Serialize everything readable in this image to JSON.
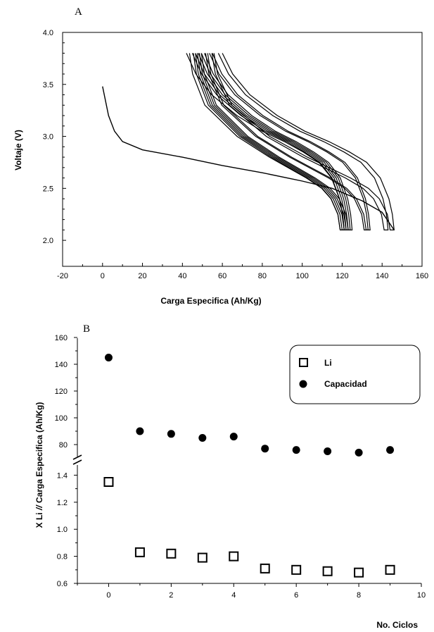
{
  "chart_data": [
    {
      "panel_label": "A",
      "type": "line",
      "xlabel": "Carga Especifica (Ah/Kg)",
      "ylabel": "Voltaje (V)",
      "xlim": [
        -20,
        160
      ],
      "ylim": [
        1.75,
        4.0
      ],
      "x_ticks": [
        "-20",
        "0",
        "20",
        "40",
        "60",
        "80",
        "100",
        "120",
        "140",
        "160"
      ],
      "y_ticks": [
        "2.0",
        "2.5",
        "3.0",
        "3.5",
        "4.0"
      ],
      "first_discharge": [
        [
          0,
          3.48
        ],
        [
          3,
          3.2
        ],
        [
          6,
          3.05
        ],
        [
          10,
          2.95
        ],
        [
          20,
          2.87
        ],
        [
          40,
          2.8
        ],
        [
          60,
          2.72
        ],
        [
          80,
          2.65
        ],
        [
          100,
          2.57
        ],
        [
          115,
          2.5
        ],
        [
          130,
          2.38
        ],
        [
          140,
          2.27
        ],
        [
          146,
          2.1
        ]
      ],
      "charge_curves": [
        {
          "end": 121,
          "start": 42,
          "bulge": 0.0
        },
        {
          "end": 121,
          "start": 44,
          "bulge": 1.0
        },
        {
          "end": 122,
          "start": 45,
          "bulge": 1.5
        },
        {
          "end": 123,
          "start": 46,
          "bulge": 2.0
        },
        {
          "end": 124,
          "start": 47,
          "bulge": 2.5
        },
        {
          "end": 125,
          "start": 48,
          "bulge": 3.0
        },
        {
          "end": 133,
          "start": 50,
          "bulge": 3.5
        },
        {
          "end": 134,
          "start": 51,
          "bulge": 4.0
        },
        {
          "end": 143,
          "start": 53,
          "bulge": 5.0
        },
        {
          "end": 146,
          "start": 54,
          "bulge": 6.0
        }
      ]
    },
    {
      "panel_label": "B",
      "type": "scatter",
      "xlabel": "No. Ciclos",
      "ylabel_lower": "X Li",
      "ylabel_break": "//",
      "ylabel_upper": "Carga Especifica (Ah/Kg)",
      "xlim": [
        -1,
        10
      ],
      "x_ticks": [
        "0",
        "2",
        "4",
        "6",
        "8",
        "10"
      ],
      "y_ticks_upper": [
        "80",
        "100",
        "120",
        "140",
        "160"
      ],
      "y_ticks_lower": [
        "0.6",
        "0.8",
        "1.0",
        "1.2",
        "1.4"
      ],
      "legend": {
        "placement": "top-right",
        "entries": [
          "Li",
          "Capacidad"
        ]
      },
      "series": [
        {
          "name": "Li",
          "marker": "open-square",
          "x": [
            0,
            1,
            2,
            3,
            4,
            5,
            6,
            7,
            8,
            9
          ],
          "values": [
            1.35,
            0.83,
            0.82,
            0.79,
            0.8,
            0.71,
            0.7,
            0.69,
            0.68,
            0.7
          ]
        },
        {
          "name": "Capacidad",
          "marker": "filled-circle",
          "x": [
            0,
            1,
            2,
            3,
            4,
            5,
            6,
            7,
            8,
            9
          ],
          "values": [
            145,
            90,
            88,
            85,
            86,
            77,
            76,
            75,
            74,
            76
          ]
        }
      ]
    }
  ]
}
